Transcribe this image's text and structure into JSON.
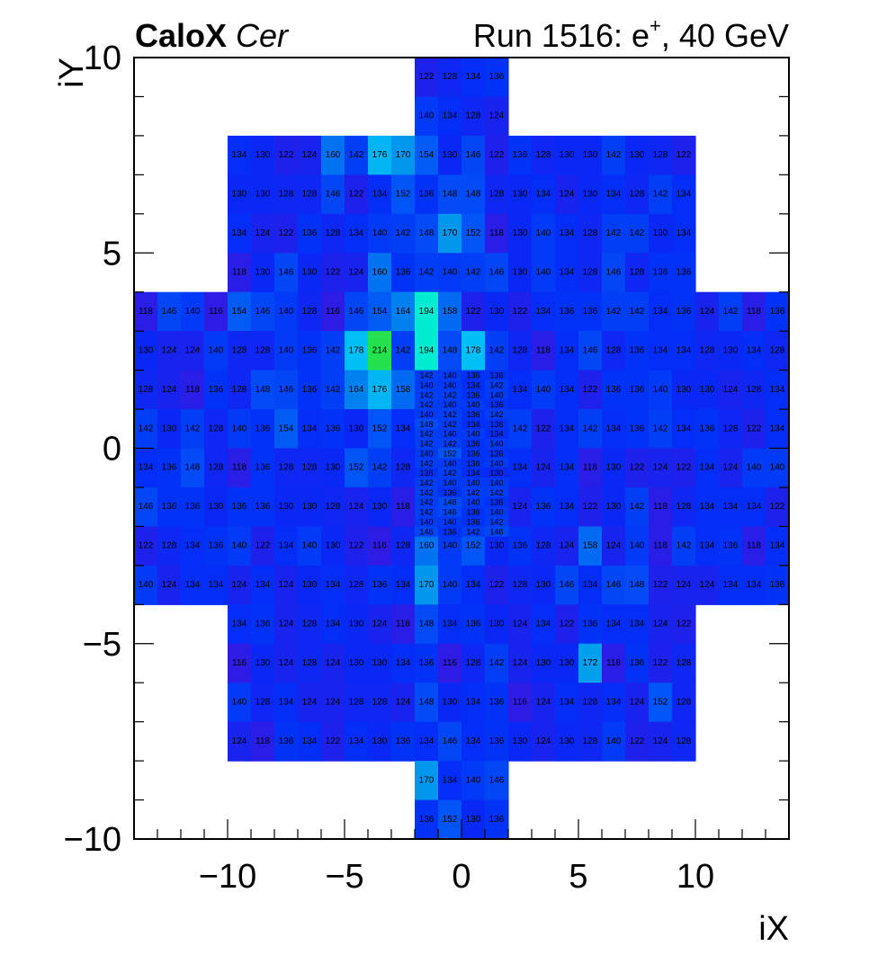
{
  "header": {
    "title_bold": "CaloX",
    "title_italic": "Cer",
    "run_prefix": "Run 1516: e",
    "run_sup": "+",
    "run_suffix": ", 40 GeV"
  },
  "chart_data": {
    "type": "heatmap",
    "xlabel": "iX",
    "ylabel": "iY",
    "xlim": [
      -14,
      14
    ],
    "ylim": [
      -10,
      10
    ],
    "x_ticks": [
      -10,
      -5,
      0,
      5,
      10
    ],
    "y_ticks": [
      -10,
      -5,
      0,
      5,
      10
    ],
    "x_tick_labels": [
      "−10",
      "−5",
      "0",
      "5",
      "10"
    ],
    "y_tick_labels": [
      "−10",
      "−5",
      "0",
      "5",
      "10"
    ],
    "grid": false,
    "colorscale": "kBird-like",
    "zlim": [
      100,
      260
    ],
    "cells": [
      {
        "y": 9,
        "x0": -2,
        "values": [
          122,
          128,
          134,
          136
        ]
      },
      {
        "y": 8,
        "x0": -2,
        "values": [
          140,
          134,
          128,
          124
        ]
      },
      {
        "y": 7,
        "x0": -10,
        "values": [
          134,
          130,
          122,
          124,
          160,
          142,
          176,
          170,
          154,
          130,
          146,
          122,
          136,
          128,
          130,
          130,
          142,
          130,
          128,
          122
        ]
      },
      {
        "y": 6,
        "x0": -10,
        "values": [
          130,
          130,
          128,
          128,
          146,
          122,
          134,
          152,
          136,
          148,
          148,
          128,
          130,
          134,
          124,
          130,
          134,
          128,
          142,
          134
        ]
      },
      {
        "y": 5,
        "x0": -10,
        "values": [
          134,
          124,
          122,
          136,
          128,
          134,
          140,
          142,
          148,
          170,
          152,
          118,
          130,
          140,
          134,
          128,
          142,
          142,
          130,
          134
        ]
      },
      {
        "y": 4,
        "x0": -10,
        "values": [
          118,
          130,
          146,
          130,
          122,
          124,
          160,
          136,
          142,
          140,
          142,
          146,
          130,
          140,
          134,
          128,
          146,
          128,
          136,
          136
        ]
      },
      {
        "y": 3,
        "x0": -14,
        "values": [
          118,
          146,
          140,
          116,
          154,
          146,
          140,
          128,
          116,
          146,
          154,
          164,
          194,
          158,
          122,
          130,
          122,
          134,
          136,
          136,
          142,
          142,
          134,
          136,
          124,
          142,
          118,
          136
        ]
      },
      {
        "y": 2,
        "x0": -14,
        "values": [
          130,
          124,
          124,
          140,
          128,
          128,
          140,
          136,
          142,
          178,
          214,
          142,
          194,
          148,
          178,
          142,
          128,
          118,
          134,
          146,
          128,
          136,
          134,
          134,
          128,
          130,
          134,
          128
        ]
      },
      {
        "y": 1,
        "x0": -14,
        "values": [
          128,
          124,
          118,
          136,
          128,
          148,
          146,
          136,
          142,
          164,
          176,
          158,
          null,
          null,
          null,
          null,
          134,
          140,
          134,
          122,
          136,
          136,
          140,
          130,
          130,
          124,
          128,
          134
        ]
      },
      {
        "y": 0,
        "x0": -14,
        "values": [
          142,
          130,
          142,
          128,
          140,
          136,
          154,
          134,
          136,
          130,
          152,
          134,
          null,
          null,
          null,
          null,
          142,
          122,
          134,
          142,
          134,
          136,
          142,
          134,
          136,
          128,
          122,
          134
        ]
      },
      {
        "y": -1,
        "x0": -14,
        "values": [
          134,
          136,
          148,
          128,
          118,
          136,
          128,
          128,
          130,
          152,
          142,
          128,
          null,
          null,
          null,
          null,
          134,
          124,
          134,
          118,
          130,
          122,
          124,
          122,
          134,
          124,
          140,
          140
        ]
      },
      {
        "y": -2,
        "x0": -14,
        "values": [
          146,
          136,
          136,
          130,
          136,
          136,
          130,
          130,
          128,
          124,
          130,
          118,
          null,
          null,
          null,
          null,
          124,
          136,
          134,
          122,
          130,
          142,
          118,
          128,
          134,
          134,
          134,
          122
        ]
      },
      {
        "y": -3,
        "x0": -14,
        "values": [
          122,
          128,
          134,
          136,
          140,
          122,
          134,
          140,
          130,
          122,
          116,
          128,
          160,
          140,
          152,
          130,
          136,
          128,
          124,
          158,
          124,
          140,
          118,
          142,
          134,
          136,
          118,
          134
        ]
      },
      {
        "y": -4,
        "x0": -14,
        "values": [
          140,
          124,
          134,
          134,
          124,
          134,
          124,
          130,
          134,
          128,
          136,
          134,
          170,
          140,
          134,
          122,
          128,
          130,
          146,
          134,
          146,
          148,
          122,
          124,
          124,
          134,
          134,
          136
        ]
      },
      {
        "y": -5,
        "x0": -10,
        "values": [
          134,
          136,
          124,
          128,
          134,
          130,
          124,
          118,
          148,
          134,
          136,
          130,
          124,
          134,
          122,
          136,
          134,
          134,
          124,
          122
        ]
      },
      {
        "y": -6,
        "x0": -10,
        "values": [
          116,
          130,
          124,
          128,
          124,
          130,
          130,
          134,
          136,
          116,
          128,
          142,
          124,
          130,
          130,
          172,
          118,
          136,
          122,
          128
        ]
      },
      {
        "y": -7,
        "x0": -10,
        "values": [
          140,
          128,
          134,
          124,
          124,
          128,
          128,
          124,
          148,
          130,
          134,
          136,
          116,
          124,
          134,
          128,
          134,
          124,
          152,
          128
        ]
      },
      {
        "y": -8,
        "x0": -10,
        "values": [
          124,
          118,
          136,
          134,
          122,
          134,
          130,
          136,
          134,
          146,
          134,
          136,
          130,
          124,
          130,
          128,
          140,
          122,
          124,
          128
        ]
      },
      {
        "y": -9,
        "x0": -2,
        "values": [
          170,
          134,
          140,
          146
        ]
      },
      {
        "y": -10,
        "x0": -2,
        "values": [
          136,
          152,
          130,
          136
        ]
      }
    ],
    "fine_cells": {
      "x0": -2,
      "y_top": 2,
      "cell_size": 0.25,
      "rows": [
        [
          142,
          140,
          136,
          136
        ],
        [
          140,
          140,
          134,
          142
        ],
        [
          142,
          142,
          136,
          140
        ],
        [
          142,
          140,
          140,
          136
        ],
        [
          140,
          142,
          136,
          142
        ],
        [
          148,
          142,
          134,
          136
        ],
        [
          142,
          140,
          140,
          134
        ],
        [
          142,
          142,
          136,
          140
        ],
        [
          140,
          152,
          136,
          136
        ],
        [
          142,
          140,
          136,
          140
        ],
        [
          136,
          142,
          134,
          130
        ],
        [
          142,
          140,
          140,
          140
        ],
        [
          142,
          136,
          142,
          142
        ],
        [
          142,
          148,
          140,
          136
        ],
        [
          142,
          146,
          136,
          140
        ],
        [
          140,
          140,
          136,
          142
        ],
        [
          146,
          136,
          142,
          146
        ]
      ]
    }
  }
}
